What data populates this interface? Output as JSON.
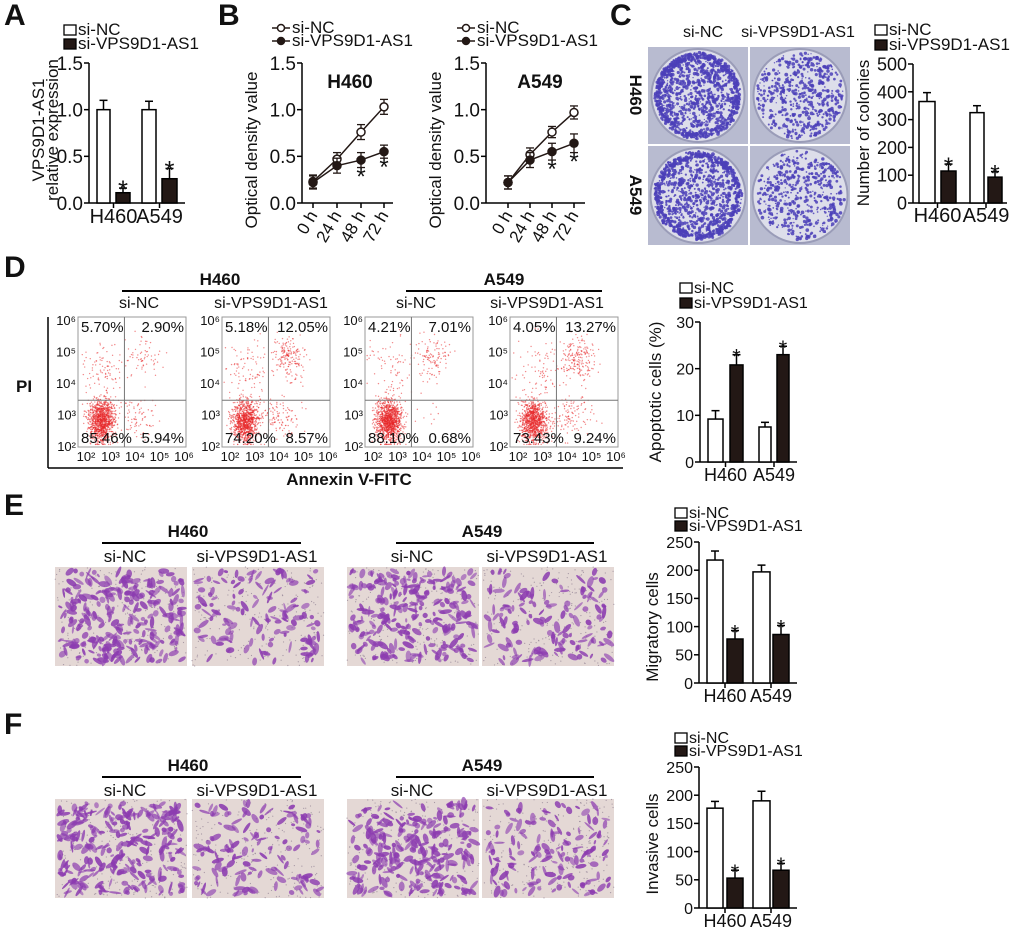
{
  "panels": [
    "A",
    "B",
    "C",
    "D",
    "E",
    "F"
  ],
  "chart_data": [
    {
      "id": "A",
      "type": "bar",
      "categories": [
        "H460",
        "A549"
      ],
      "series": [
        {
          "name": "si-NC",
          "values": [
            1.0,
            1.0
          ],
          "errors": [
            0.1,
            0.09
          ],
          "fill": "#ffffff",
          "markers": [
            "",
            ""
          ]
        },
        {
          "name": "si-VPS9D1-AS1",
          "values": [
            0.11,
            0.26
          ],
          "errors": [
            0.05,
            0.11
          ],
          "fill": "#231815",
          "markers": [
            "*",
            "*"
          ]
        }
      ],
      "ylabel": [
        "VPS9D1-AS1",
        "relative expression"
      ],
      "ylim": [
        0,
        1.5
      ],
      "yticks": [
        "0.0",
        "0.5",
        "1.0",
        "1.5"
      ]
    },
    {
      "id": "B-H460",
      "type": "line",
      "title": "H460",
      "x": [
        "0 h",
        "24 h",
        "48 h",
        "72 h"
      ],
      "series": [
        {
          "name": "si-NC",
          "values": [
            0.23,
            0.47,
            0.76,
            1.03
          ],
          "errors": [
            0.07,
            0.07,
            0.08,
            0.08
          ],
          "open": true,
          "markers": [
            "",
            "",
            "",
            ""
          ]
        },
        {
          "name": "si-VPS9D1-AS1",
          "values": [
            0.22,
            0.4,
            0.46,
            0.55
          ],
          "errors": [
            0.07,
            0.08,
            0.08,
            0.07
          ],
          "open": false,
          "markers": [
            "",
            "",
            "*",
            "*"
          ]
        }
      ],
      "ylabel": [
        "Optical density value"
      ],
      "ylim": [
        0,
        1.5
      ],
      "yticks": [
        "0.0",
        "0.5",
        "1.0",
        "1.5"
      ]
    },
    {
      "id": "B-A549",
      "type": "line",
      "title": "A549",
      "x": [
        "0 h",
        "24 h",
        "48 h",
        "72 h"
      ],
      "series": [
        {
          "name": "si-NC",
          "values": [
            0.22,
            0.52,
            0.76,
            0.97
          ],
          "errors": [
            0.07,
            0.07,
            0.06,
            0.07
          ],
          "open": true,
          "markers": [
            "",
            "",
            "",
            ""
          ]
        },
        {
          "name": "si-VPS9D1-AS1",
          "values": [
            0.22,
            0.46,
            0.55,
            0.64
          ],
          "errors": [
            0.07,
            0.08,
            0.09,
            0.1
          ],
          "open": false,
          "markers": [
            "",
            "",
            "*",
            "*"
          ]
        }
      ],
      "ylabel": [
        "Optical density value"
      ],
      "ylim": [
        0,
        1.5
      ],
      "yticks": [
        "0.0",
        "0.5",
        "1.0",
        "1.5"
      ]
    },
    {
      "id": "C",
      "type": "bar",
      "categories": [
        "H460",
        "A549"
      ],
      "series": [
        {
          "name": "si-NC",
          "values": [
            365,
            325
          ],
          "errors": [
            32,
            25
          ],
          "fill": "#ffffff",
          "markers": [
            "",
            ""
          ]
        },
        {
          "name": "si-VPS9D1-AS1",
          "values": [
            115,
            93
          ],
          "errors": [
            25,
            20
          ],
          "fill": "#231815",
          "markers": [
            "*",
            "*"
          ]
        }
      ],
      "ylabel": [
        "Number of colonies"
      ],
      "ylim": [
        0,
        500
      ],
      "yticks": [
        "0",
        "100",
        "200",
        "300",
        "400",
        "500"
      ]
    },
    {
      "id": "D",
      "type": "bar",
      "categories": [
        "H460",
        "A549"
      ],
      "series": [
        {
          "name": "si-NC",
          "values": [
            9.2,
            7.5
          ],
          "errors": [
            1.8,
            1.0
          ],
          "fill": "#ffffff",
          "markers": [
            "",
            ""
          ]
        },
        {
          "name": "si-VPS9D1-AS1",
          "values": [
            20.8,
            23.0
          ],
          "errors": [
            2.2,
            1.8
          ],
          "fill": "#231815",
          "markers": [
            "*",
            "*"
          ]
        }
      ],
      "ylabel": [
        "Apoptotic cells (%)"
      ],
      "ylim": [
        0,
        30
      ],
      "yticks": [
        "0",
        "10",
        "20",
        "30"
      ]
    },
    {
      "id": "E",
      "type": "bar",
      "categories": [
        "H460",
        "A549"
      ],
      "series": [
        {
          "name": "si-NC",
          "values": [
            218,
            197
          ],
          "errors": [
            16,
            12
          ],
          "fill": "#ffffff",
          "markers": [
            "",
            ""
          ]
        },
        {
          "name": "si-VPS9D1-AS1",
          "values": [
            78,
            86
          ],
          "errors": [
            15,
            16
          ],
          "fill": "#231815",
          "markers": [
            "*",
            "*"
          ]
        }
      ],
      "ylabel": [
        "Migratory cells"
      ],
      "ylim": [
        0,
        250
      ],
      "yticks": [
        "0",
        "50",
        "100",
        "150",
        "200",
        "250"
      ]
    },
    {
      "id": "F",
      "type": "bar",
      "categories": [
        "H460",
        "A549"
      ],
      "series": [
        {
          "name": "si-NC",
          "values": [
            177,
            190
          ],
          "errors": [
            12,
            17
          ],
          "fill": "#ffffff",
          "markers": [
            "",
            ""
          ]
        },
        {
          "name": "si-VPS9D1-AS1",
          "values": [
            53,
            67
          ],
          "errors": [
            14,
            12
          ],
          "fill": "#231815",
          "markers": [
            "*",
            "*"
          ]
        }
      ],
      "ylabel": [
        "Invasive cells"
      ],
      "ylim": [
        0,
        250
      ],
      "yticks": [
        "0",
        "50",
        "100",
        "150",
        "200",
        "250"
      ]
    }
  ],
  "colony": {
    "columns": [
      "si-NC",
      "si-VPS9D1-AS1"
    ],
    "rows": [
      "H460",
      "A549"
    ]
  },
  "flow": {
    "groups": [
      {
        "name": "H460",
        "conditions": [
          "si-NC",
          "si-VPS9D1-AS1"
        ]
      },
      {
        "name": "A549",
        "conditions": [
          "si-NC",
          "si-VPS9D1-AS1"
        ]
      }
    ],
    "plots": [
      {
        "ul": "5.70%",
        "ur": "2.90%",
        "ll": "85.46%",
        "lr": "5.94%"
      },
      {
        "ul": "5.18%",
        "ur": "12.05%",
        "ll": "74.20%",
        "lr": "8.57%"
      },
      {
        "ul": "4.21%",
        "ur": "7.01%",
        "ll": "88.10%",
        "lr": "0.68%"
      },
      {
        "ul": "4.05%",
        "ur": "13.27%",
        "ll": "73.43%",
        "lr": "9.24%"
      }
    ],
    "ticks": [
      "10²",
      "10³",
      "10⁴",
      "10⁵",
      "10⁶"
    ],
    "y_label": "PI",
    "x_label": "Annexin V-FITC",
    "dot_color": "#e8282a"
  },
  "migration": {
    "groups": [
      {
        "name": "H460",
        "conditions": [
          "si-NC",
          "si-VPS9D1-AS1"
        ]
      },
      {
        "name": "A549",
        "conditions": [
          "si-NC",
          "si-VPS9D1-AS1"
        ]
      }
    ]
  },
  "invasion": {
    "groups": [
      {
        "name": "H460",
        "conditions": [
          "si-NC",
          "si-VPS9D1-AS1"
        ]
      },
      {
        "name": "A549",
        "conditions": [
          "si-NC",
          "si-VPS9D1-AS1"
        ]
      }
    ]
  },
  "colors": {
    "dark": "#231815",
    "stain": "#8c3cb0",
    "colony": "#4b40b8"
  }
}
